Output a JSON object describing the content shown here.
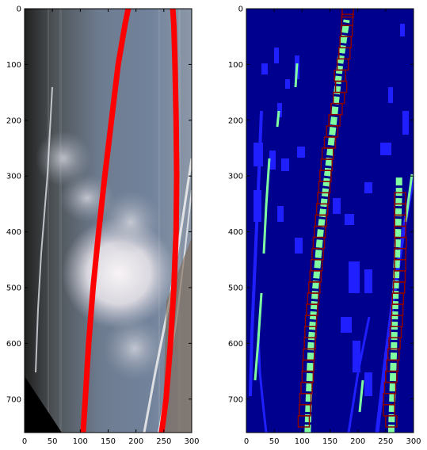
{
  "chart_data": [
    {
      "type": "image",
      "title": "",
      "xlabel": "",
      "ylabel": "",
      "xlim": [
        0,
        300
      ],
      "ylim": [
        760,
        0
      ],
      "xticks": [
        0,
        50,
        100,
        150,
        200,
        250,
        300
      ],
      "yticks": [
        0,
        100,
        200,
        300,
        400,
        500,
        600,
        700
      ],
      "xtick_labels": [
        "0",
        "50",
        "100",
        "150",
        "200",
        "250",
        "300"
      ],
      "ytick_labels": [
        "0",
        "100",
        "200",
        "300",
        "400",
        "500",
        "600",
        "700"
      ],
      "colors": {
        "lane_line": "#ff0000",
        "sky": "#6f7f95",
        "cloud": "#f2eef0",
        "left_edge": "#2a2a2a"
      },
      "series": [
        {
          "x": [
            105,
            109,
            115,
            123,
            133,
            144,
            156,
            168,
            180,
            186
          ],
          "y": [
            760,
            700,
            600,
            500,
            400,
            300,
            200,
            100,
            30,
            0
          ]
        },
        {
          "x": [
            246,
            254,
            262,
            268,
            272,
            273,
            272,
            270,
            268,
            266
          ],
          "y": [
            760,
            700,
            600,
            500,
            400,
            300,
            200,
            100,
            30,
            0
          ]
        }
      ]
    },
    {
      "type": "image",
      "title": "",
      "xlabel": "",
      "ylabel": "",
      "xlim": [
        0,
        300
      ],
      "ylim": [
        760,
        0
      ],
      "xticks": [
        0,
        50,
        100,
        150,
        200,
        250,
        300
      ],
      "yticks": [
        0,
        100,
        200,
        300,
        400,
        500,
        600,
        700
      ],
      "xtick_labels": [
        "0",
        "50",
        "100",
        "150",
        "200",
        "250",
        "300"
      ],
      "ytick_labels": [
        "0",
        "100",
        "200",
        "300",
        "400",
        "500",
        "600",
        "700"
      ],
      "colors": {
        "background": "#00008f",
        "noise": "#1f1fff",
        "lane_pixels": "#7fffa0",
        "window": "#8b0000"
      },
      "series": [
        {
          "x": [
            110,
            112,
            116,
            124,
            133,
            145,
            157,
            168,
            180
          ],
          "y": [
            760,
            700,
            600,
            500,
            400,
            300,
            200,
            100,
            20
          ]
        },
        {
          "x": [
            260,
            262,
            265,
            268,
            272,
            274,
            274
          ],
          "y": [
            760,
            700,
            600,
            500,
            400,
            330,
            300
          ]
        }
      ],
      "windows": [
        {
          "x": 103,
          "y": 740
        },
        {
          "x": 105,
          "y": 720
        },
        {
          "x": 106,
          "y": 700
        },
        {
          "x": 108,
          "y": 680
        },
        {
          "x": 110,
          "y": 660
        },
        {
          "x": 111,
          "y": 640
        },
        {
          "x": 112,
          "y": 620
        },
        {
          "x": 114,
          "y": 600
        },
        {
          "x": 115,
          "y": 580
        },
        {
          "x": 116,
          "y": 560
        },
        {
          "x": 118,
          "y": 540
        },
        {
          "x": 120,
          "y": 520
        },
        {
          "x": 122,
          "y": 500
        },
        {
          "x": 124,
          "y": 480
        },
        {
          "x": 126,
          "y": 460
        },
        {
          "x": 128,
          "y": 440
        },
        {
          "x": 130,
          "y": 420
        },
        {
          "x": 132,
          "y": 400
        },
        {
          "x": 134,
          "y": 380
        },
        {
          "x": 136,
          "y": 360
        },
        {
          "x": 138,
          "y": 340
        },
        {
          "x": 140,
          "y": 320
        },
        {
          "x": 142,
          "y": 300
        },
        {
          "x": 144,
          "y": 280
        },
        {
          "x": 146,
          "y": 260
        },
        {
          "x": 150,
          "y": 240
        },
        {
          "x": 154,
          "y": 220
        },
        {
          "x": 158,
          "y": 200
        },
        {
          "x": 162,
          "y": 180
        },
        {
          "x": 166,
          "y": 160
        },
        {
          "x": 170,
          "y": 140
        },
        {
          "x": 168,
          "y": 120
        },
        {
          "x": 173,
          "y": 100
        },
        {
          "x": 176,
          "y": 80
        },
        {
          "x": 178,
          "y": 60
        },
        {
          "x": 180,
          "y": 40
        },
        {
          "x": 181,
          "y": 20
        },
        {
          "x": 182,
          "y": 5
        },
        {
          "x": 260,
          "y": 740
        },
        {
          "x": 256,
          "y": 720
        },
        {
          "x": 256,
          "y": 700
        },
        {
          "x": 258,
          "y": 680
        },
        {
          "x": 260,
          "y": 660
        },
        {
          "x": 262,
          "y": 640
        },
        {
          "x": 264,
          "y": 620
        },
        {
          "x": 266,
          "y": 600
        },
        {
          "x": 268,
          "y": 580
        },
        {
          "x": 270,
          "y": 560
        },
        {
          "x": 271,
          "y": 540
        },
        {
          "x": 272,
          "y": 520
        },
        {
          "x": 274,
          "y": 500
        },
        {
          "x": 275,
          "y": 480
        },
        {
          "x": 276,
          "y": 460
        },
        {
          "x": 276,
          "y": 440
        },
        {
          "x": 277,
          "y": 420
        },
        {
          "x": 276,
          "y": 400
        },
        {
          "x": 276,
          "y": 380
        },
        {
          "x": 276,
          "y": 360
        },
        {
          "x": 276,
          "y": 340
        }
      ]
    }
  ]
}
